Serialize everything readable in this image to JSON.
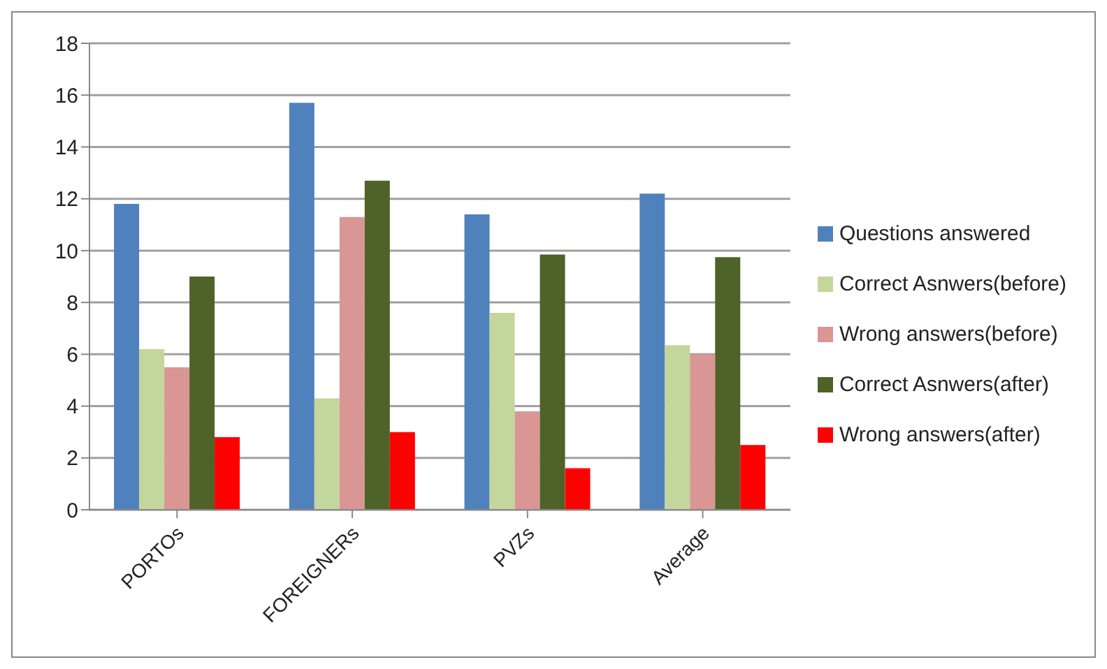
{
  "chart_data": {
    "type": "bar",
    "categories": [
      "PORTOs",
      "FOREIGNERs",
      "PVZs",
      "Average"
    ],
    "series": [
      {
        "name": "Questions answered",
        "color": "#4f81bd",
        "values": [
          11.8,
          15.7,
          11.4,
          12.2
        ]
      },
      {
        "name": "Correct Asnwers(before)",
        "color": "#c3d69b",
        "values": [
          6.2,
          4.3,
          7.6,
          6.35
        ]
      },
      {
        "name": "Wrong answers(before)",
        "color": "#d99694",
        "values": [
          5.5,
          11.3,
          3.8,
          6.0
        ]
      },
      {
        "name": "Correct Asnwers(after)",
        "color": "#4f6228",
        "values": [
          9.0,
          12.7,
          9.85,
          9.75
        ]
      },
      {
        "name": "Wrong answers(after)",
        "color": "#ff0000",
        "values": [
          2.8,
          3.0,
          1.6,
          2.5
        ]
      }
    ],
    "ylim": [
      0,
      18
    ],
    "yticks": [
      0,
      2,
      4,
      6,
      8,
      10,
      12,
      14,
      16,
      18
    ],
    "grid": "y",
    "legend": "right"
  }
}
